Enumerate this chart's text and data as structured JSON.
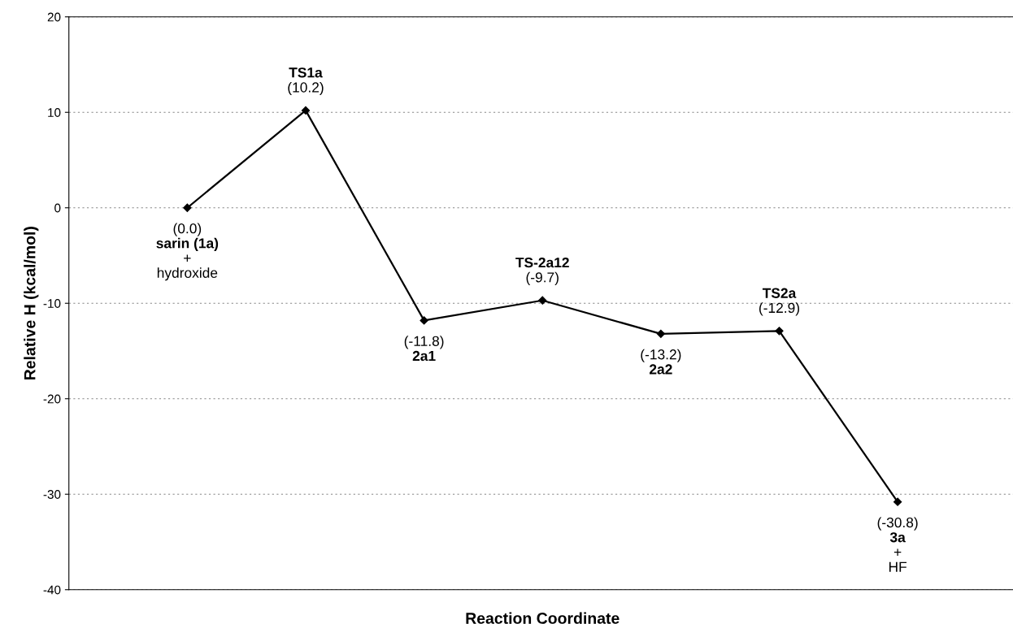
{
  "chart_data": {
    "type": "line",
    "xlabel": "Reaction Coordinate",
    "ylabel": "Relative H (kcal/mol)",
    "categories": [
      null,
      null,
      null,
      null,
      null,
      null,
      null
    ],
    "series": [
      {
        "color": "#000000",
        "values": [
          0.0,
          10.2,
          -11.8,
          -9.7,
          -13.2,
          -12.9,
          -30.8
        ],
        "value_labels": [
          "(0.0)",
          "(10.2)",
          "(-11.8)",
          "(-9.7)",
          "(-13.2)",
          "(-12.9)",
          "(-30.8)"
        ]
      }
    ],
    "annotations": [
      "sarin (1a)\n+\nhydroxide",
      "TS1a",
      "2a1",
      "TS-2a12",
      "2a2",
      "TS2a",
      "3a\n+\nHF"
    ],
    "ylim": [
      -40,
      20
    ],
    "yticks": [
      -40,
      -30,
      -20,
      -10,
      0,
      10,
      20
    ],
    "grid": "y",
    "marker": "diamond",
    "line_style": "solid"
  }
}
